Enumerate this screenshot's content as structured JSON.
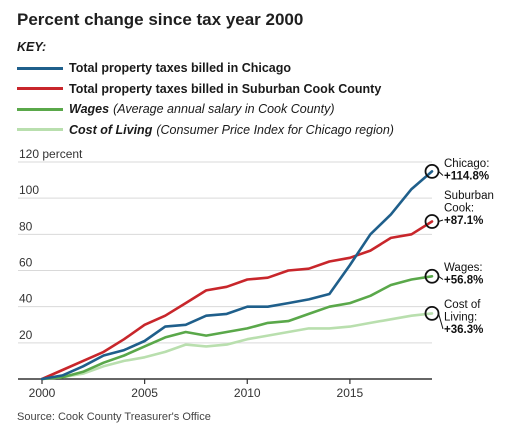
{
  "title": "Percent change since tax year 2000",
  "key_label": "KEY:",
  "legend": [
    {
      "label": "Total property taxes billed in Chicago",
      "desc": "",
      "color": "#1f5f8b",
      "italic": false
    },
    {
      "label": "Total property taxes billed in Suburban Cook County",
      "desc": "",
      "color": "#c8262b",
      "italic": false
    },
    {
      "label": "Wages",
      "desc": "(Average annual salary in Cook County)",
      "color": "#5aa84a",
      "italic": true
    },
    {
      "label": "Cost of Living",
      "desc": "(Consumer Price Index for Chicago region)",
      "color": "#b9dfae",
      "italic": true
    }
  ],
  "source": "Source: Cook County Treasurer's Office",
  "chart_data": {
    "type": "line",
    "title": "Percent change since tax year 2000",
    "xlabel": "",
    "ylabel": "",
    "xlim": [
      2000,
      2019
    ],
    "ylim": [
      0,
      120
    ],
    "x_ticks": [
      "2000",
      "2005",
      "2010",
      "2015"
    ],
    "y_ticks": [
      "20",
      "40",
      "60",
      "80",
      "100",
      "120 percent"
    ],
    "grid": "horizontal",
    "x": [
      2000,
      2001,
      2002,
      2003,
      2004,
      2005,
      2006,
      2007,
      2008,
      2009,
      2010,
      2011,
      2012,
      2013,
      2014,
      2015,
      2016,
      2017,
      2018,
      2019
    ],
    "series": [
      {
        "name": "Total property taxes billed in Chicago",
        "color": "#1f5f8b",
        "values": [
          0,
          2,
          7,
          13,
          16,
          21,
          29,
          30,
          35,
          36,
          40,
          40,
          42,
          44,
          47,
          63,
          80,
          91,
          105,
          114.8
        ],
        "end_label": [
          "Chicago:",
          "+114.8%"
        ]
      },
      {
        "name": "Total property taxes billed in Suburban Cook County",
        "color": "#c8262b",
        "values": [
          0,
          5,
          10,
          15,
          22,
          30,
          35,
          42,
          49,
          51,
          55,
          56,
          60,
          61,
          65,
          67,
          71,
          78,
          80,
          87.1
        ],
        "end_label": [
          "Suburban",
          "Cook:",
          "+87.1%"
        ]
      },
      {
        "name": "Wages",
        "color": "#5aa84a",
        "values": [
          0,
          1,
          4,
          9,
          13,
          18,
          23,
          26,
          24,
          26,
          28,
          31,
          32,
          36,
          40,
          42,
          46,
          52,
          55,
          56.8
        ],
        "end_label": [
          "Wages:",
          "+56.8%"
        ]
      },
      {
        "name": "Cost of Living",
        "color": "#b9dfae",
        "values": [
          0,
          1,
          3,
          7,
          10,
          12,
          15,
          19,
          18,
          19,
          22,
          24,
          26,
          28,
          28,
          29,
          31,
          33,
          35,
          36.3
        ],
        "end_label": [
          "Cost of",
          "Living:",
          "+36.3%"
        ]
      }
    ]
  }
}
